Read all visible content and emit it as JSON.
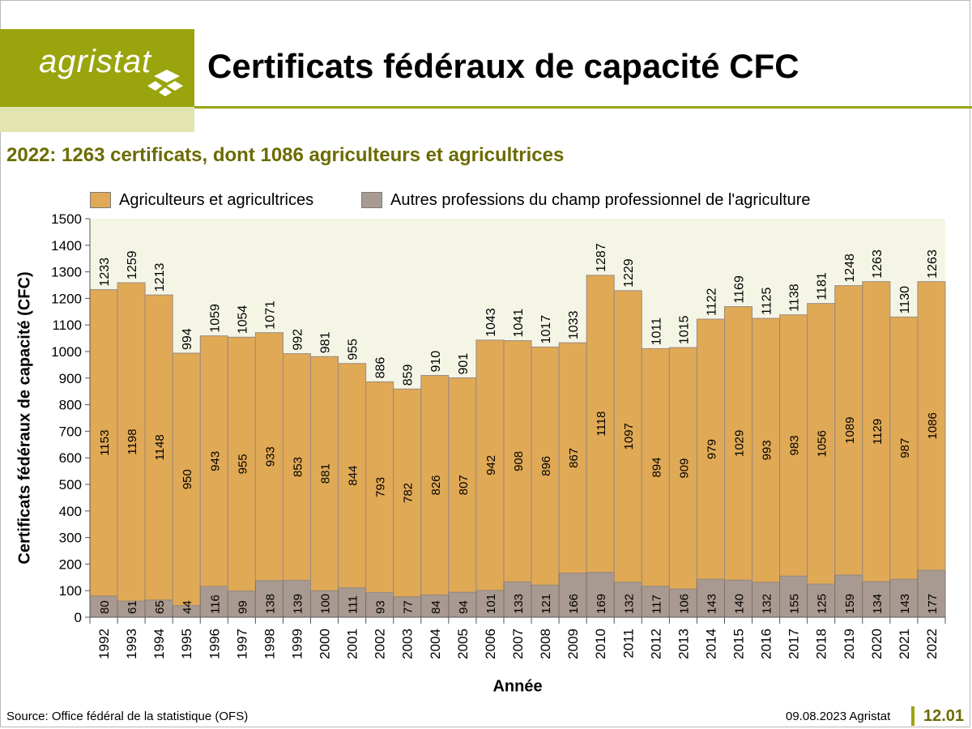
{
  "header": {
    "logo_text": "agristat",
    "title": "Certificats fédéraux de capacité CFC",
    "subtitle": "2022: 1263 certificats, dont 1086 agriculteurs et agricultrices"
  },
  "legend": {
    "agri_label": "Agriculteurs et agricultrices",
    "other_label": "Autres professions du champ professionnel de l'agriculture"
  },
  "colors": {
    "agri": "#e0a955",
    "other": "#a89a90",
    "plot_bg": "#f5f5e6",
    "accent": "#9aa40c"
  },
  "chart_data": {
    "type": "bar",
    "stacked": true,
    "xlabel": "Année",
    "ylabel": "Certificats fédéraux de capacité (CFC)",
    "ylim": [
      0,
      1500
    ],
    "yticks": [
      0,
      100,
      200,
      300,
      400,
      500,
      600,
      700,
      800,
      900,
      1000,
      1100,
      1200,
      1300,
      1400,
      1500
    ],
    "categories": [
      "1992",
      "1993",
      "1994",
      "1995",
      "1996",
      "1997",
      "1998",
      "1999",
      "2000",
      "2001",
      "2002",
      "2003",
      "2004",
      "2005",
      "2006",
      "2007",
      "2008",
      "2009",
      "2010",
      "2011",
      "2012",
      "2013",
      "2014",
      "2015",
      "2016",
      "2017",
      "2018",
      "2019",
      "2020",
      "2021",
      "2022"
    ],
    "series": [
      {
        "name": "Autres professions du champ professionnel de l'agriculture",
        "values": [
          80,
          61,
          65,
          44,
          116,
          99,
          138,
          139,
          100,
          111,
          93,
          77,
          84,
          94,
          101,
          133,
          121,
          166,
          169,
          132,
          117,
          106,
          143,
          140,
          132,
          155,
          125,
          159,
          134,
          143,
          177
        ]
      },
      {
        "name": "Agriculteurs et agricultrices",
        "values": [
          1153,
          1198,
          1148,
          950,
          943,
          955,
          933,
          853,
          881,
          844,
          793,
          782,
          826,
          807,
          942,
          908,
          896,
          867,
          1118,
          1097,
          894,
          909,
          979,
          1029,
          993,
          983,
          1056,
          1089,
          1129,
          987,
          1086
        ]
      }
    ],
    "totals": [
      1233,
      1259,
      1213,
      994,
      1059,
      1054,
      1071,
      992,
      981,
      955,
      886,
      859,
      910,
      901,
      1043,
      1041,
      1017,
      1033,
      1287,
      1229,
      1011,
      1015,
      1122,
      1169,
      1125,
      1138,
      1181,
      1248,
      1263,
      1130,
      1263
    ],
    "legend_position": "top"
  },
  "footer": {
    "source": "Source: Office fédéral de la statistique (OFS)",
    "date": "09.08.2023 Agristat",
    "page": "12.01"
  }
}
